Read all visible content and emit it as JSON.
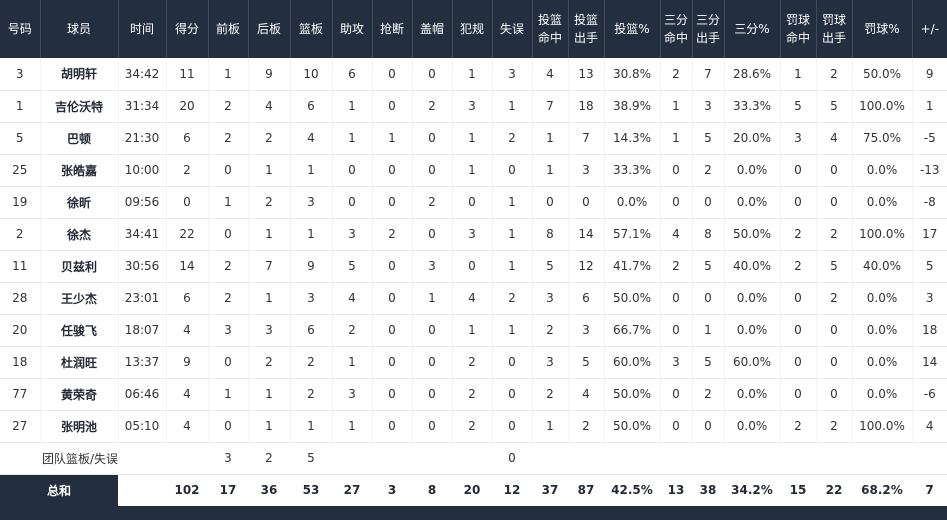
{
  "colors": {
    "header_bg": "#232f3e",
    "total_bg": "#232f3e",
    "header_text": "#ffffff",
    "text": "#333333",
    "row_border": "#ebebeb"
  },
  "chart_data": {
    "type": "table",
    "title": "",
    "columns": [
      "号码",
      "球员",
      "时间",
      "得分",
      "前板",
      "后板",
      "篮板",
      "助攻",
      "抢断",
      "盖帽",
      "犯规",
      "失误",
      "投篮命中",
      "投篮出手",
      "投篮%",
      "三分命中",
      "三分出手",
      "三分%",
      "罚球命中",
      "罚球出手",
      "罚球%",
      "+/-"
    ],
    "header_display": [
      "号码",
      "球员",
      "时间",
      "得分",
      "前板",
      "后板",
      "篮板",
      "助攻",
      "抢断",
      "盖帽",
      "犯规",
      "失误",
      "投篮\n命中",
      "投篮\n出手",
      "投篮%",
      "三分\n命中",
      "三分\n出手",
      "三分%",
      "罚球\n命中",
      "罚球\n出手",
      "罚球%",
      "+/-"
    ],
    "column_keys": [
      "number",
      "player",
      "time",
      "points",
      "oreb",
      "dreb",
      "reb",
      "ast",
      "stl",
      "blk",
      "pf",
      "tov",
      "fgm",
      "fga",
      "fgp",
      "tpm",
      "tpa",
      "tpp",
      "ftm",
      "fta",
      "ftp",
      "plus-minus"
    ],
    "rows": [
      {
        "type": "player",
        "cells": [
          "3",
          "胡明轩",
          "34:42",
          "11",
          "1",
          "9",
          "10",
          "6",
          "0",
          "0",
          "1",
          "3",
          "4",
          "13",
          "30.8%",
          "2",
          "7",
          "28.6%",
          "1",
          "2",
          "50.0%",
          "9"
        ]
      },
      {
        "type": "player",
        "cells": [
          "1",
          "吉伦沃特",
          "31:34",
          "20",
          "2",
          "4",
          "6",
          "1",
          "0",
          "2",
          "3",
          "1",
          "7",
          "18",
          "38.9%",
          "1",
          "3",
          "33.3%",
          "5",
          "5",
          "100.0%",
          "1"
        ]
      },
      {
        "type": "player",
        "cells": [
          "5",
          "巴顿",
          "21:30",
          "6",
          "2",
          "2",
          "4",
          "1",
          "1",
          "0",
          "1",
          "2",
          "1",
          "7",
          "14.3%",
          "1",
          "5",
          "20.0%",
          "3",
          "4",
          "75.0%",
          "-5"
        ]
      },
      {
        "type": "player",
        "cells": [
          "25",
          "张皓嘉",
          "10:00",
          "2",
          "0",
          "1",
          "1",
          "0",
          "0",
          "0",
          "1",
          "0",
          "1",
          "3",
          "33.3%",
          "0",
          "2",
          "0.0%",
          "0",
          "0",
          "0.0%",
          "-13"
        ]
      },
      {
        "type": "player",
        "cells": [
          "19",
          "徐昕",
          "09:56",
          "0",
          "1",
          "2",
          "3",
          "0",
          "0",
          "2",
          "0",
          "1",
          "0",
          "0",
          "0.0%",
          "0",
          "0",
          "0.0%",
          "0",
          "0",
          "0.0%",
          "-8"
        ]
      },
      {
        "type": "player",
        "cells": [
          "2",
          "徐杰",
          "34:41",
          "22",
          "0",
          "1",
          "1",
          "3",
          "2",
          "0",
          "3",
          "1",
          "8",
          "14",
          "57.1%",
          "4",
          "8",
          "50.0%",
          "2",
          "2",
          "100.0%",
          "17"
        ]
      },
      {
        "type": "player",
        "cells": [
          "11",
          "贝兹利",
          "30:56",
          "14",
          "2",
          "7",
          "9",
          "5",
          "0",
          "3",
          "0",
          "1",
          "5",
          "12",
          "41.7%",
          "2",
          "5",
          "40.0%",
          "2",
          "5",
          "40.0%",
          "5"
        ]
      },
      {
        "type": "player",
        "cells": [
          "28",
          "王少杰",
          "23:01",
          "6",
          "2",
          "1",
          "3",
          "4",
          "0",
          "1",
          "4",
          "2",
          "3",
          "6",
          "50.0%",
          "0",
          "0",
          "0.0%",
          "0",
          "2",
          "0.0%",
          "3"
        ]
      },
      {
        "type": "player",
        "cells": [
          "20",
          "任骏飞",
          "18:07",
          "4",
          "3",
          "3",
          "6",
          "2",
          "0",
          "0",
          "1",
          "1",
          "2",
          "3",
          "66.7%",
          "0",
          "1",
          "0.0%",
          "0",
          "0",
          "0.0%",
          "18"
        ]
      },
      {
        "type": "player",
        "cells": [
          "18",
          "杜润旺",
          "13:37",
          "9",
          "0",
          "2",
          "2",
          "1",
          "0",
          "0",
          "2",
          "0",
          "3",
          "5",
          "60.0%",
          "3",
          "5",
          "60.0%",
          "0",
          "0",
          "0.0%",
          "14"
        ]
      },
      {
        "type": "player",
        "cells": [
          "77",
          "黄荣奇",
          "06:46",
          "4",
          "1",
          "1",
          "2",
          "3",
          "0",
          "0",
          "2",
          "0",
          "2",
          "4",
          "50.0%",
          "0",
          "2",
          "0.0%",
          "0",
          "0",
          "0.0%",
          "-6"
        ]
      },
      {
        "type": "player",
        "cells": [
          "27",
          "张明池",
          "05:10",
          "4",
          "0",
          "1",
          "1",
          "1",
          "0",
          "0",
          "2",
          "0",
          "1",
          "2",
          "50.0%",
          "0",
          "0",
          "0.0%",
          "2",
          "2",
          "100.0%",
          "4"
        ]
      },
      {
        "type": "team",
        "cells": [
          "",
          "团队篮板/失误",
          "",
          "",
          "3",
          "2",
          "5",
          "",
          "",
          "",
          "",
          "0",
          "",
          "",
          "",
          "",
          "",
          "",
          "",
          "",
          "",
          ""
        ]
      },
      {
        "type": "total",
        "label": "总和",
        "cells": [
          "",
          "102",
          "17",
          "36",
          "53",
          "27",
          "3",
          "8",
          "20",
          "12",
          "37",
          "87",
          "42.5%",
          "13",
          "38",
          "34.2%",
          "15",
          "22",
          "68.2%",
          "7"
        ]
      }
    ]
  }
}
